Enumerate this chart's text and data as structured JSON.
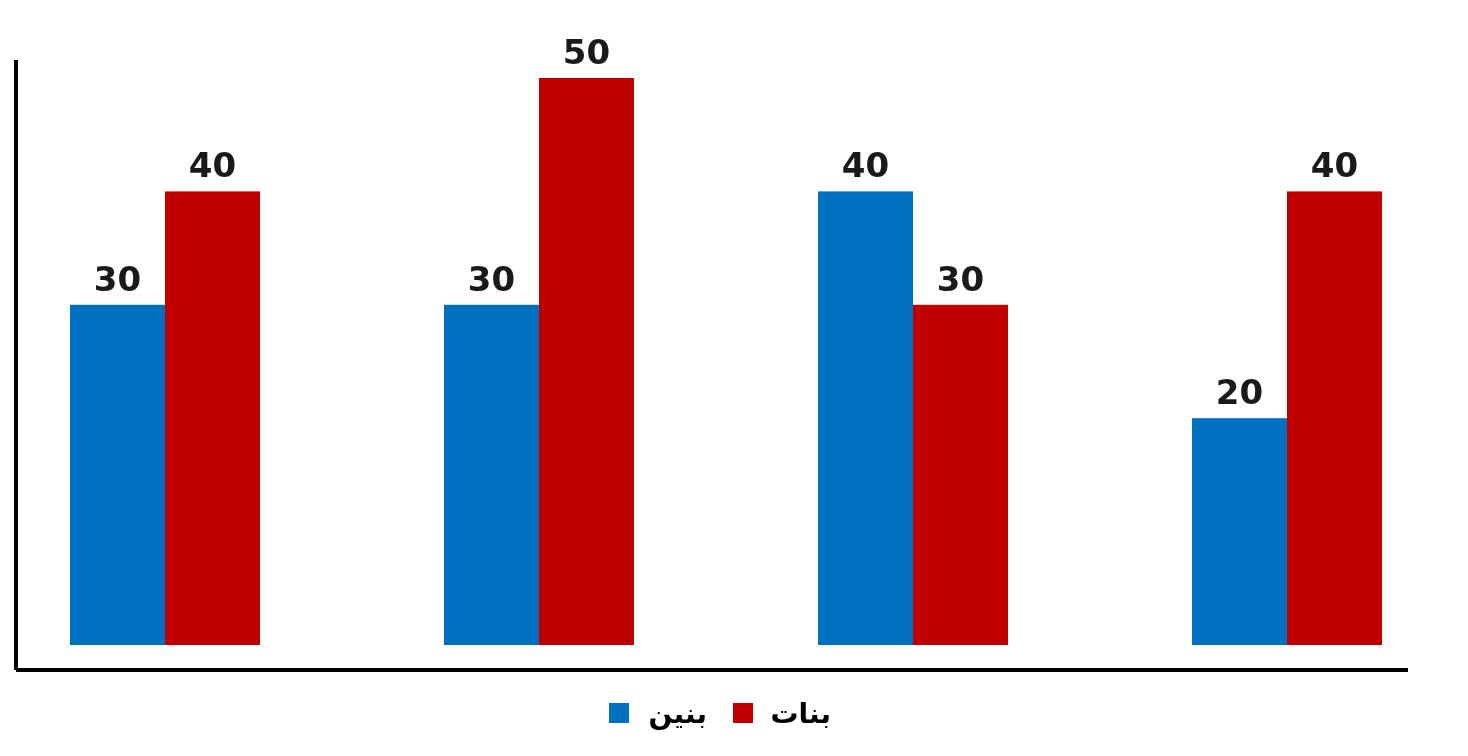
{
  "chart_data": {
    "type": "bar",
    "categories": [
      null,
      null,
      null,
      null
    ],
    "series": [
      {
        "name": "بنين",
        "color": "#0070c0",
        "values": [
          30,
          30,
          40,
          20
        ]
      },
      {
        "name": "بنات",
        "color": "#c00000",
        "values": [
          40,
          50,
          30,
          40
        ]
      }
    ],
    "data_labels": true,
    "legend": "bottom"
  }
}
